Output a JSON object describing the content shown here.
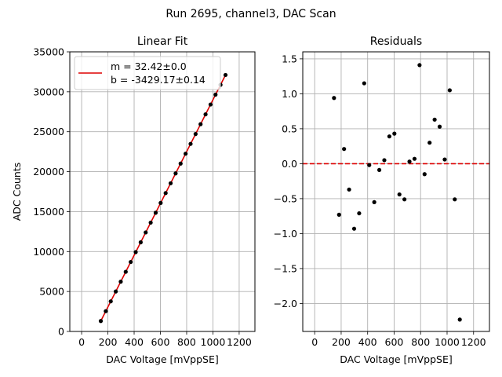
{
  "suptitle": "Run 2695, channel3, DAC Scan",
  "chart_data": [
    {
      "type": "scatter",
      "title": "Linear Fit",
      "xlabel": "DAC Voltage [mVppSE]",
      "ylabel": "ADC Counts",
      "xlim": [
        -90,
        1320
      ],
      "ylim": [
        0,
        35000
      ],
      "xticks": [
        0,
        200,
        400,
        600,
        800,
        1000,
        1200
      ],
      "xtick_labels": [
        "0",
        "200",
        "400",
        "600",
        "800",
        "1000",
        "1200"
      ],
      "yticks": [
        0,
        5000,
        10000,
        15000,
        20000,
        25000,
        30000,
        35000
      ],
      "ytick_labels": [
        "0",
        "5000",
        "10000",
        "15000",
        "20000",
        "25000",
        "30000",
        "35000"
      ],
      "grid": true,
      "series": [
        {
          "kind": "points",
          "color": "#000000",
          "x": [
            146,
            184,
            222,
            260,
            298,
            336,
            374,
            412,
            450,
            488,
            526,
            564,
            602,
            640,
            678,
            716,
            754,
            792,
            830,
            868,
            906,
            944,
            982,
            1020,
            1058,
            1096
          ],
          "y": [
            1304,
            2536,
            3768,
            5000,
            6232,
            7464,
            8696,
            9928,
            11160,
            12392,
            13624,
            14856,
            16088,
            17320,
            18552,
            19784,
            21016,
            22248,
            23480,
            24712,
            25944,
            27176,
            28408,
            29640,
            30872,
            32104
          ]
        },
        {
          "kind": "fit",
          "color": "#dd0000",
          "slope": 32.42,
          "intercept": -3429.17,
          "x_range": [
            146,
            1096
          ],
          "legend_lines": [
            "m = 32.42±0.0",
            "b = -3429.17±0.14"
          ]
        }
      ],
      "legend_position": "upper-left"
    },
    {
      "type": "scatter",
      "title": "Residuals",
      "xlabel": "DAC Voltage [mVppSE]",
      "xlim": [
        -90,
        1320
      ],
      "ylim": [
        -2.4,
        1.6
      ],
      "xticks": [
        0,
        200,
        400,
        600,
        800,
        1000,
        1200
      ],
      "xtick_labels": [
        "0",
        "200",
        "400",
        "600",
        "800",
        "1000",
        "1200"
      ],
      "yticks": [
        -2.0,
        -1.5,
        -1.0,
        -0.5,
        0.0,
        0.5,
        1.0,
        1.5
      ],
      "ytick_labels": [
        "−2.0",
        "−1.5",
        "−1.0",
        "−0.5",
        "0.0",
        "0.5",
        "1.0",
        "1.5"
      ],
      "grid": true,
      "reference_line": {
        "y": 0.0,
        "color": "#dd0000",
        "style": "dashed"
      },
      "series": [
        {
          "kind": "points",
          "color": "#000000",
          "x": [
            146,
            184,
            222,
            260,
            298,
            336,
            374,
            412,
            450,
            488,
            526,
            564,
            602,
            640,
            678,
            716,
            754,
            792,
            830,
            868,
            906,
            944,
            982,
            1020,
            1058,
            1096
          ],
          "y": [
            0.94,
            -0.73,
            0.21,
            -0.37,
            -0.93,
            -0.71,
            1.15,
            -0.02,
            -0.55,
            -0.09,
            0.05,
            0.39,
            0.43,
            -0.44,
            -0.51,
            0.03,
            0.07,
            1.41,
            -0.15,
            0.3,
            0.63,
            0.53,
            0.06,
            1.05,
            -0.51,
            -2.23
          ]
        }
      ]
    }
  ]
}
